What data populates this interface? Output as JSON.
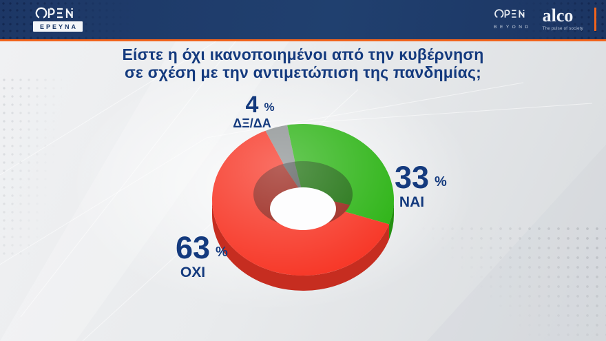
{
  "header": {
    "left_brand": {
      "name": "OPEN",
      "subtitle": "ΕΡΕΥΝΑ"
    },
    "right_brand": {
      "name": "OPEN",
      "subtitle": "BEYOND"
    },
    "alco": {
      "name": "alco",
      "tagline": "The pulse of society"
    }
  },
  "question": {
    "line1": "Είστε η όχι ικανοποιημένοι από την κυβέρνηση",
    "line2": "σε σχέση με την αντιμετώπιση της πανδημίας;"
  },
  "chart_data": {
    "type": "pie",
    "donut": true,
    "effect_3d": true,
    "title": "Είστε η όχι ικανοποιημένοι από την κυβέρνηση σε σχέση με την αντιμετώπιση της πανδημίας;",
    "unit": "%",
    "legend_position": "callouts",
    "slices": [
      {
        "label": "ΔΞ/ΔΑ",
        "value": 4,
        "color": "#8d9293"
      },
      {
        "label": "ΝΑΙ",
        "value": 33,
        "color": "#2eb417"
      },
      {
        "label": "ΟΧΙ",
        "value": 63,
        "color": "#f73828"
      }
    ]
  },
  "colors": {
    "accent_orange": "#f2641c",
    "header_blue": "#1e3a6a",
    "text_blue": "#143a7e"
  }
}
